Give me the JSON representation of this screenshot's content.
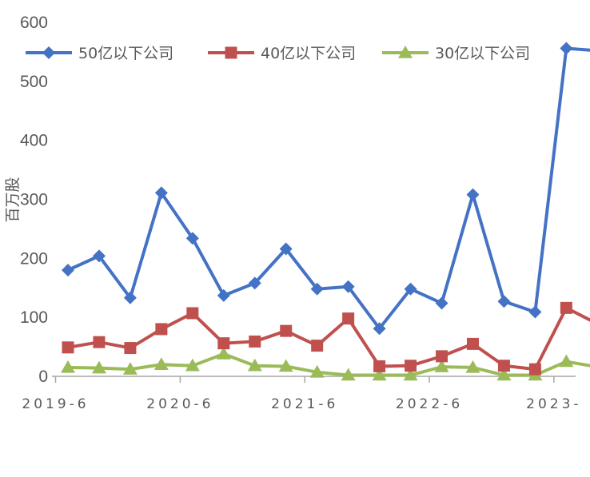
{
  "chart_data": {
    "type": "line",
    "title": "",
    "xlabel": "",
    "ylabel": "百万股",
    "ylim": [
      0,
      600
    ],
    "yticks": [
      "0",
      "100",
      "200",
      "300",
      "400",
      "500",
      "600"
    ],
    "xtick_labels": [
      "2019-6",
      "2020-6",
      "2021-6",
      "2022-6",
      "2023-"
    ],
    "grid": false,
    "legend_position": "top",
    "series": [
      {
        "name": "50亿以下公司",
        "color": "#4472C4",
        "marker": "diamond",
        "values": [
          180,
          204,
          133,
          311,
          234,
          137,
          158,
          216,
          148,
          152,
          81,
          148,
          124,
          308,
          127,
          109,
          556,
          552
        ]
      },
      {
        "name": "40亿以下公司",
        "color": "#C0504D",
        "marker": "square",
        "values": [
          49,
          58,
          48,
          80,
          107,
          56,
          59,
          77,
          52,
          98,
          17,
          18,
          34,
          55,
          18,
          12,
          116,
          89
        ]
      },
      {
        "name": "30亿以下公司",
        "color": "#9BBB59",
        "marker": "triangle",
        "values": [
          15,
          14,
          12,
          20,
          18,
          38,
          18,
          17,
          7,
          2,
          2,
          2,
          16,
          15,
          2,
          2,
          25,
          16
        ]
      }
    ]
  }
}
